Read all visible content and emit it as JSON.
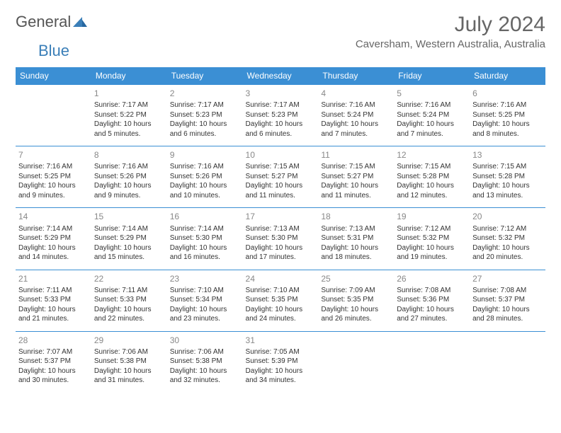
{
  "logo": {
    "text1": "General",
    "text2": "Blue"
  },
  "title": {
    "month": "July 2024",
    "location": "Caversham, Western Australia, Australia"
  },
  "colors": {
    "header_bg": "#3b8fd4",
    "header_text": "#ffffff",
    "border": "#3b8fd4",
    "text": "#333333",
    "daynum": "#888888",
    "logo_gray": "#555555",
    "logo_blue": "#3b7fb8"
  },
  "daynames": [
    "Sunday",
    "Monday",
    "Tuesday",
    "Wednesday",
    "Thursday",
    "Friday",
    "Saturday"
  ],
  "weeks": [
    [
      null,
      {
        "n": "1",
        "sr": "Sunrise: 7:17 AM",
        "ss": "Sunset: 5:22 PM",
        "dl": "Daylight: 10 hours and 5 minutes."
      },
      {
        "n": "2",
        "sr": "Sunrise: 7:17 AM",
        "ss": "Sunset: 5:23 PM",
        "dl": "Daylight: 10 hours and 6 minutes."
      },
      {
        "n": "3",
        "sr": "Sunrise: 7:17 AM",
        "ss": "Sunset: 5:23 PM",
        "dl": "Daylight: 10 hours and 6 minutes."
      },
      {
        "n": "4",
        "sr": "Sunrise: 7:16 AM",
        "ss": "Sunset: 5:24 PM",
        "dl": "Daylight: 10 hours and 7 minutes."
      },
      {
        "n": "5",
        "sr": "Sunrise: 7:16 AM",
        "ss": "Sunset: 5:24 PM",
        "dl": "Daylight: 10 hours and 7 minutes."
      },
      {
        "n": "6",
        "sr": "Sunrise: 7:16 AM",
        "ss": "Sunset: 5:25 PM",
        "dl": "Daylight: 10 hours and 8 minutes."
      }
    ],
    [
      {
        "n": "7",
        "sr": "Sunrise: 7:16 AM",
        "ss": "Sunset: 5:25 PM",
        "dl": "Daylight: 10 hours and 9 minutes."
      },
      {
        "n": "8",
        "sr": "Sunrise: 7:16 AM",
        "ss": "Sunset: 5:26 PM",
        "dl": "Daylight: 10 hours and 9 minutes."
      },
      {
        "n": "9",
        "sr": "Sunrise: 7:16 AM",
        "ss": "Sunset: 5:26 PM",
        "dl": "Daylight: 10 hours and 10 minutes."
      },
      {
        "n": "10",
        "sr": "Sunrise: 7:15 AM",
        "ss": "Sunset: 5:27 PM",
        "dl": "Daylight: 10 hours and 11 minutes."
      },
      {
        "n": "11",
        "sr": "Sunrise: 7:15 AM",
        "ss": "Sunset: 5:27 PM",
        "dl": "Daylight: 10 hours and 11 minutes."
      },
      {
        "n": "12",
        "sr": "Sunrise: 7:15 AM",
        "ss": "Sunset: 5:28 PM",
        "dl": "Daylight: 10 hours and 12 minutes."
      },
      {
        "n": "13",
        "sr": "Sunrise: 7:15 AM",
        "ss": "Sunset: 5:28 PM",
        "dl": "Daylight: 10 hours and 13 minutes."
      }
    ],
    [
      {
        "n": "14",
        "sr": "Sunrise: 7:14 AM",
        "ss": "Sunset: 5:29 PM",
        "dl": "Daylight: 10 hours and 14 minutes."
      },
      {
        "n": "15",
        "sr": "Sunrise: 7:14 AM",
        "ss": "Sunset: 5:29 PM",
        "dl": "Daylight: 10 hours and 15 minutes."
      },
      {
        "n": "16",
        "sr": "Sunrise: 7:14 AM",
        "ss": "Sunset: 5:30 PM",
        "dl": "Daylight: 10 hours and 16 minutes."
      },
      {
        "n": "17",
        "sr": "Sunrise: 7:13 AM",
        "ss": "Sunset: 5:30 PM",
        "dl": "Daylight: 10 hours and 17 minutes."
      },
      {
        "n": "18",
        "sr": "Sunrise: 7:13 AM",
        "ss": "Sunset: 5:31 PM",
        "dl": "Daylight: 10 hours and 18 minutes."
      },
      {
        "n": "19",
        "sr": "Sunrise: 7:12 AM",
        "ss": "Sunset: 5:32 PM",
        "dl": "Daylight: 10 hours and 19 minutes."
      },
      {
        "n": "20",
        "sr": "Sunrise: 7:12 AM",
        "ss": "Sunset: 5:32 PM",
        "dl": "Daylight: 10 hours and 20 minutes."
      }
    ],
    [
      {
        "n": "21",
        "sr": "Sunrise: 7:11 AM",
        "ss": "Sunset: 5:33 PM",
        "dl": "Daylight: 10 hours and 21 minutes."
      },
      {
        "n": "22",
        "sr": "Sunrise: 7:11 AM",
        "ss": "Sunset: 5:33 PM",
        "dl": "Daylight: 10 hours and 22 minutes."
      },
      {
        "n": "23",
        "sr": "Sunrise: 7:10 AM",
        "ss": "Sunset: 5:34 PM",
        "dl": "Daylight: 10 hours and 23 minutes."
      },
      {
        "n": "24",
        "sr": "Sunrise: 7:10 AM",
        "ss": "Sunset: 5:35 PM",
        "dl": "Daylight: 10 hours and 24 minutes."
      },
      {
        "n": "25",
        "sr": "Sunrise: 7:09 AM",
        "ss": "Sunset: 5:35 PM",
        "dl": "Daylight: 10 hours and 26 minutes."
      },
      {
        "n": "26",
        "sr": "Sunrise: 7:08 AM",
        "ss": "Sunset: 5:36 PM",
        "dl": "Daylight: 10 hours and 27 minutes."
      },
      {
        "n": "27",
        "sr": "Sunrise: 7:08 AM",
        "ss": "Sunset: 5:37 PM",
        "dl": "Daylight: 10 hours and 28 minutes."
      }
    ],
    [
      {
        "n": "28",
        "sr": "Sunrise: 7:07 AM",
        "ss": "Sunset: 5:37 PM",
        "dl": "Daylight: 10 hours and 30 minutes."
      },
      {
        "n": "29",
        "sr": "Sunrise: 7:06 AM",
        "ss": "Sunset: 5:38 PM",
        "dl": "Daylight: 10 hours and 31 minutes."
      },
      {
        "n": "30",
        "sr": "Sunrise: 7:06 AM",
        "ss": "Sunset: 5:38 PM",
        "dl": "Daylight: 10 hours and 32 minutes."
      },
      {
        "n": "31",
        "sr": "Sunrise: 7:05 AM",
        "ss": "Sunset: 5:39 PM",
        "dl": "Daylight: 10 hours and 34 minutes."
      },
      null,
      null,
      null
    ]
  ]
}
